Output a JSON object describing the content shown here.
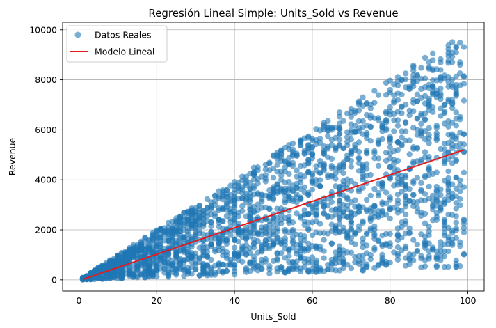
{
  "chart_data": {
    "type": "scatter",
    "title": "Regresión Lineal Simple: Units_Sold vs Revenue",
    "xlabel": "Units_Sold",
    "ylabel": "Revenue",
    "xlim": [
      -4.2,
      104.2
    ],
    "ylim": [
      -450,
      10300
    ],
    "x_ticks": [
      0,
      20,
      40,
      60,
      80,
      100
    ],
    "y_ticks": [
      0,
      2000,
      4000,
      6000,
      8000,
      10000
    ],
    "grid": true,
    "legend_position": "top-left",
    "series": [
      {
        "name": "Datos Reales",
        "kind": "scatter",
        "color": "#1f77b4",
        "description_of_distribution": "x from 1 to 99 integer units; y spread between roughly 5*x and 100*x",
        "x_range": [
          1,
          99
        ],
        "y_min_per_unit": 5,
        "y_max_per_unit": 100,
        "point_count": 2400
      },
      {
        "name": "Modelo Lineal",
        "kind": "line",
        "color": "#e41a1c",
        "x": [
          1,
          99
        ],
        "y": [
          20,
          5200
        ]
      }
    ]
  }
}
